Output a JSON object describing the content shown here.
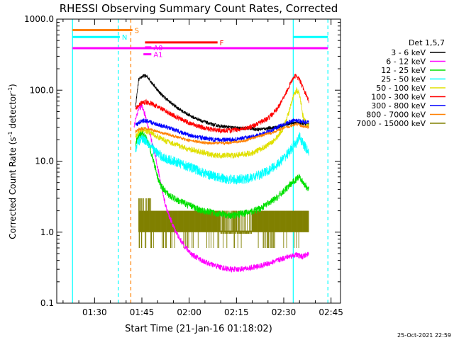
{
  "chart_data": {
    "type": "line",
    "title": "RHESSI Observing Summary Count Rates, Corrected",
    "xlabel": "Start Time (21-Jan-16 01:18:02)",
    "ylabel_main": "Corrected Count Rate (s",
    "ylabel_sup1": "-1",
    "ylabel_mid": " detector",
    "ylabel_sup2": "-1",
    "ylabel_end": ")",
    "yscale": "log",
    "ylim": [
      0.1,
      1000
    ],
    "xlim_min": [
      78,
      168
    ],
    "yticks": [
      {
        "v": 1000,
        "label": "1000.0"
      },
      {
        "v": 100,
        "label": "100.0"
      },
      {
        "v": 10,
        "label": "10.0"
      },
      {
        "v": 1,
        "label": "1.0"
      },
      {
        "v": 0.1,
        "label": "0.1"
      }
    ],
    "xticks": [
      {
        "m": 90,
        "label": "01:30"
      },
      {
        "m": 105,
        "label": "01:45"
      },
      {
        "m": 120,
        "label": "02:00"
      },
      {
        "m": 135,
        "label": "02:15"
      },
      {
        "m": 150,
        "label": "02:30"
      },
      {
        "m": 165,
        "label": "02:45"
      }
    ],
    "legend": {
      "position": "right",
      "title": "Det 1,5,7",
      "entries": [
        {
          "label": "3 - 6 keV",
          "color": "#000000"
        },
        {
          "label": "6 - 12 keV",
          "color": "#ff00ff"
        },
        {
          "label": "12 - 25 keV",
          "color": "#00e000"
        },
        {
          "label": "25 - 50 keV",
          "color": "#00ffff"
        },
        {
          "label": "50 - 100 keV",
          "color": "#e0e000"
        },
        {
          "label": "100 - 300 keV",
          "color": "#ff0000"
        },
        {
          "label": "300 - 800 keV",
          "color": "#0000ff"
        },
        {
          "label": "800 - 7000 keV",
          "color": "#ff8000"
        },
        {
          "label": "7000 - 15000 keV",
          "color": "#808000"
        }
      ]
    },
    "flags": [
      {
        "label": "S",
        "color": "#ff8000",
        "x0": 83,
        "x1": 102,
        "y": 700
      },
      {
        "label": "N",
        "color": "#00ffff",
        "x0": 83,
        "x1": 98,
        "y": 560
      },
      {
        "label": "F",
        "color": "#ff0000",
        "x0": 106,
        "x1": 129,
        "y": 470
      },
      {
        "label": "A0",
        "color": "#ff00ff",
        "x0": 106,
        "x1": 108,
        "y": 400
      },
      {
        "label": "A1",
        "color": "#ff00ff",
        "x0": 105.5,
        "x1": 108,
        "y": 320
      },
      {
        "label": "",
        "color": "#ff00ff",
        "x0": 83,
        "x1": 164,
        "y": 390
      },
      {
        "label": "",
        "color": "#00ffff",
        "x0": 153,
        "x1": 164,
        "y": 560
      }
    ],
    "vlines": [
      {
        "m": 83,
        "color": "#00ffff",
        "style": "solid"
      },
      {
        "m": 97.5,
        "color": "#00ffff",
        "style": "dashed"
      },
      {
        "m": 101.5,
        "color": "#ff8000",
        "style": "dashed"
      },
      {
        "m": 153,
        "color": "#00ffff",
        "style": "solid"
      },
      {
        "m": 164,
        "color": "#00ffff",
        "style": "dashed"
      }
    ],
    "series": [
      {
        "name": "3 - 6 keV",
        "color": "#000000",
        "noise": 0.025,
        "points": [
          [
            103,
            60
          ],
          [
            104,
            140
          ],
          [
            105,
            155
          ],
          [
            106,
            160
          ],
          [
            107,
            150
          ],
          [
            108,
            130
          ],
          [
            110,
            100
          ],
          [
            112,
            80
          ],
          [
            115,
            62
          ],
          [
            118,
            50
          ],
          [
            121,
            42
          ],
          [
            124,
            37
          ],
          [
            127,
            33
          ],
          [
            130,
            31
          ],
          [
            133,
            30
          ],
          [
            136,
            29
          ],
          [
            139,
            29
          ],
          [
            142,
            28
          ],
          [
            145,
            29
          ],
          [
            148,
            30
          ],
          [
            150,
            32
          ],
          [
            152,
            34
          ],
          [
            154,
            35
          ],
          [
            156,
            34
          ],
          [
            158,
            33
          ]
        ]
      },
      {
        "name": "6 - 12 keV",
        "color": "#ff00ff",
        "noise": 0.04,
        "points": [
          [
            102.5,
            30
          ],
          [
            103,
            40
          ],
          [
            104,
            55
          ],
          [
            105,
            60
          ],
          [
            106,
            45
          ],
          [
            107,
            30
          ],
          [
            108,
            20
          ],
          [
            109,
            13
          ],
          [
            110,
            8
          ],
          [
            111,
            5
          ],
          [
            112,
            3
          ],
          [
            113,
            2
          ],
          [
            115,
            1.2
          ],
          [
            117,
            0.8
          ],
          [
            119,
            0.6
          ],
          [
            121,
            0.48
          ],
          [
            124,
            0.4
          ],
          [
            127,
            0.35
          ],
          [
            130,
            0.32
          ],
          [
            133,
            0.3
          ],
          [
            136,
            0.3
          ],
          [
            139,
            0.31
          ],
          [
            142,
            0.33
          ],
          [
            145,
            0.36
          ],
          [
            148,
            0.4
          ],
          [
            150,
            0.43
          ],
          [
            152,
            0.46
          ],
          [
            154,
            0.48
          ],
          [
            156,
            0.45
          ],
          [
            158,
            0.5
          ]
        ]
      },
      {
        "name": "12 - 25 keV",
        "color": "#00e000",
        "noise": 0.05,
        "points": [
          [
            103,
            18
          ],
          [
            104,
            22
          ],
          [
            105,
            25
          ],
          [
            106,
            22
          ],
          [
            107,
            18
          ],
          [
            108,
            13
          ],
          [
            109,
            9
          ],
          [
            110,
            6
          ],
          [
            111,
            4.5
          ],
          [
            113,
            3.5
          ],
          [
            115,
            3
          ],
          [
            118,
            2.6
          ],
          [
            121,
            2.3
          ],
          [
            124,
            2.0
          ],
          [
            127,
            1.9
          ],
          [
            130,
            1.8
          ],
          [
            133,
            1.7
          ],
          [
            136,
            1.8
          ],
          [
            139,
            1.9
          ],
          [
            142,
            2.1
          ],
          [
            145,
            2.5
          ],
          [
            148,
            3.1
          ],
          [
            150,
            3.8
          ],
          [
            152,
            4.6
          ],
          [
            154,
            5.6
          ],
          [
            155,
            6.3
          ],
          [
            156,
            5.0
          ],
          [
            158,
            4.0
          ]
        ]
      },
      {
        "name": "25 - 50 keV",
        "color": "#00ffff",
        "noise": 0.07,
        "points": [
          [
            103,
            15
          ],
          [
            104,
            19
          ],
          [
            105,
            21
          ],
          [
            106,
            20
          ],
          [
            107,
            18
          ],
          [
            108,
            16
          ],
          [
            109,
            14
          ],
          [
            110,
            13
          ],
          [
            112,
            11
          ],
          [
            115,
            10
          ],
          [
            118,
            9
          ],
          [
            121,
            8
          ],
          [
            124,
            7
          ],
          [
            127,
            6.3
          ],
          [
            130,
            5.8
          ],
          [
            133,
            5.5
          ],
          [
            136,
            5.5
          ],
          [
            139,
            5.7
          ],
          [
            142,
            6.3
          ],
          [
            145,
            7.3
          ],
          [
            148,
            9
          ],
          [
            150,
            11
          ],
          [
            152,
            14
          ],
          [
            154,
            18
          ],
          [
            155,
            22
          ],
          [
            156,
            18
          ],
          [
            158,
            13
          ]
        ]
      },
      {
        "name": "50 - 100 keV",
        "color": "#e0e000",
        "noise": 0.04,
        "points": [
          [
            103,
            22
          ],
          [
            104,
            26
          ],
          [
            105,
            28
          ],
          [
            106,
            27
          ],
          [
            108,
            25
          ],
          [
            110,
            22
          ],
          [
            113,
            19
          ],
          [
            116,
            17
          ],
          [
            119,
            15
          ],
          [
            122,
            14
          ],
          [
            125,
            13
          ],
          [
            128,
            12
          ],
          [
            131,
            12
          ],
          [
            134,
            12
          ],
          [
            137,
            12.5
          ],
          [
            140,
            13
          ],
          [
            143,
            15
          ],
          [
            146,
            18
          ],
          [
            148,
            22
          ],
          [
            150,
            30
          ],
          [
            152,
            55
          ],
          [
            153,
            80
          ],
          [
            154,
            100
          ],
          [
            155,
            90
          ],
          [
            156,
            45
          ],
          [
            157,
            35
          ],
          [
            158,
            30
          ]
        ]
      },
      {
        "name": "100 - 300 keV",
        "color": "#ff0000",
        "noise": 0.035,
        "points": [
          [
            103,
            55
          ],
          [
            104,
            62
          ],
          [
            105,
            66
          ],
          [
            106,
            68
          ],
          [
            108,
            65
          ],
          [
            110,
            58
          ],
          [
            112,
            52
          ],
          [
            115,
            44
          ],
          [
            118,
            38
          ],
          [
            121,
            33
          ],
          [
            124,
            30
          ],
          [
            127,
            28
          ],
          [
            130,
            27
          ],
          [
            133,
            27
          ],
          [
            136,
            28
          ],
          [
            139,
            30
          ],
          [
            142,
            34
          ],
          [
            145,
            40
          ],
          [
            148,
            55
          ],
          [
            150,
            80
          ],
          [
            152,
            120
          ],
          [
            153,
            150
          ],
          [
            154,
            160
          ],
          [
            155,
            140
          ],
          [
            156,
            110
          ],
          [
            158,
            70
          ]
        ]
      },
      {
        "name": "300 - 800 keV",
        "color": "#0000ff",
        "noise": 0.03,
        "points": [
          [
            103,
            32
          ],
          [
            104,
            35
          ],
          [
            105,
            37
          ],
          [
            106,
            37
          ],
          [
            108,
            35
          ],
          [
            110,
            33
          ],
          [
            113,
            30
          ],
          [
            116,
            27
          ],
          [
            119,
            24
          ],
          [
            122,
            22
          ],
          [
            125,
            21
          ],
          [
            128,
            20
          ],
          [
            131,
            20
          ],
          [
            134,
            20
          ],
          [
            137,
            21
          ],
          [
            140,
            22
          ],
          [
            143,
            24
          ],
          [
            146,
            27
          ],
          [
            148,
            30
          ],
          [
            150,
            33
          ],
          [
            152,
            36
          ],
          [
            154,
            38
          ],
          [
            156,
            36
          ],
          [
            158,
            35
          ]
        ]
      },
      {
        "name": "800 - 7000 keV",
        "color": "#ff8000",
        "noise": 0.02,
        "points": [
          [
            103,
            26
          ],
          [
            104,
            28
          ],
          [
            106,
            29
          ],
          [
            108,
            28
          ],
          [
            110,
            26
          ],
          [
            113,
            24
          ],
          [
            116,
            22
          ],
          [
            119,
            20
          ],
          [
            122,
            19
          ],
          [
            125,
            18
          ],
          [
            128,
            18
          ],
          [
            131,
            18
          ],
          [
            134,
            18.5
          ],
          [
            137,
            19
          ],
          [
            140,
            21
          ],
          [
            143,
            23
          ],
          [
            146,
            25
          ],
          [
            148,
            27
          ],
          [
            150,
            29
          ],
          [
            152,
            31
          ],
          [
            154,
            33
          ],
          [
            156,
            31
          ],
          [
            158,
            30
          ]
        ]
      }
    ],
    "band_7000": {
      "name": "7000 - 15000 keV",
      "color": "#808000",
      "x0": 104,
      "x1": 158,
      "low": 1.0,
      "high": 2.0
    },
    "timestamp": "25-Oct-2021 22:59"
  }
}
